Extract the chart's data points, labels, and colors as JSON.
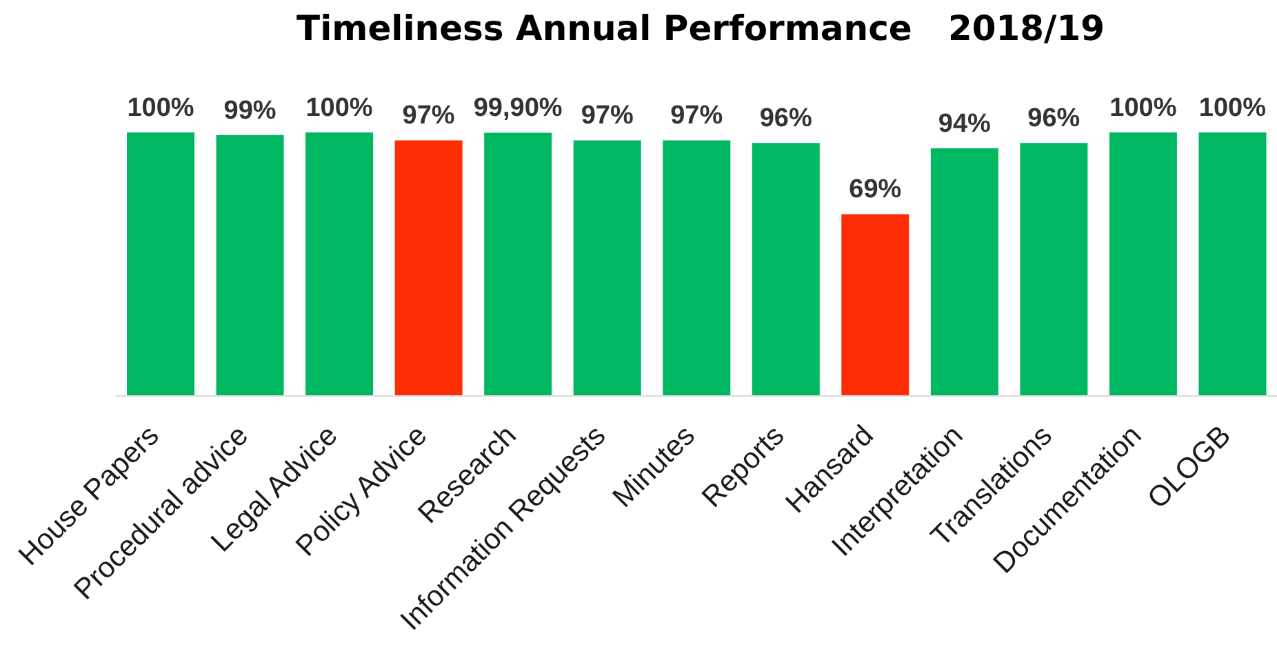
{
  "chart_data": {
    "type": "bar",
    "title": "Timeliness Annual Performance   2018/19",
    "categories": [
      "House Papers",
      "Procedural advice",
      "Legal Advice",
      "Policy Advice",
      "Research",
      "Information Requests",
      "Minutes",
      "Reports",
      "Hansard",
      "Interpretation",
      "Translations",
      "Documentation",
      "OLOGB"
    ],
    "values": [
      100,
      99,
      100,
      97,
      99.9,
      97,
      97,
      96,
      69,
      94,
      96,
      100,
      100
    ],
    "colors": [
      "#00b862",
      "#00b862",
      "#00b862",
      "#fe2c02",
      "#00b862",
      "#00b862",
      "#00b862",
      "#00b862",
      "#fe2c02",
      "#00b862",
      "#00b862",
      "#00b862",
      "#00b862"
    ],
    "value_labels": [
      "100%",
      "99%",
      "100%",
      "97%",
      "99,90%",
      "97%",
      "97%",
      "96%",
      "69%",
      "94%",
      "96%",
      "100%",
      "100%"
    ]
  }
}
